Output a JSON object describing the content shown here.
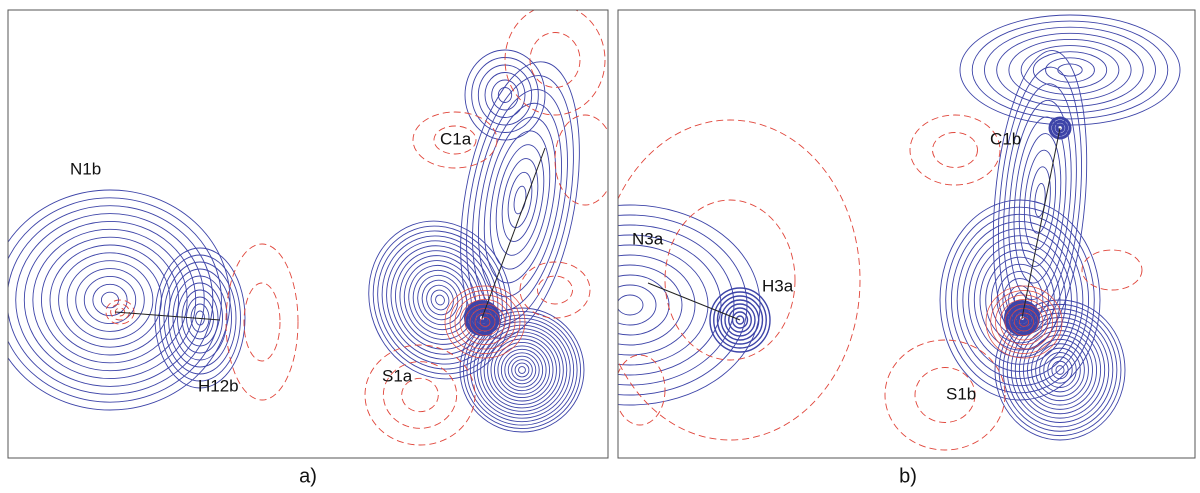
{
  "panels": [
    {
      "caption": "a)",
      "labels": [
        "N1b",
        "H12b",
        "C1a",
        "S1a"
      ]
    },
    {
      "caption": "b)",
      "labels": [
        "N3a",
        "H3a",
        "C1b",
        "S1b"
      ]
    }
  ]
}
